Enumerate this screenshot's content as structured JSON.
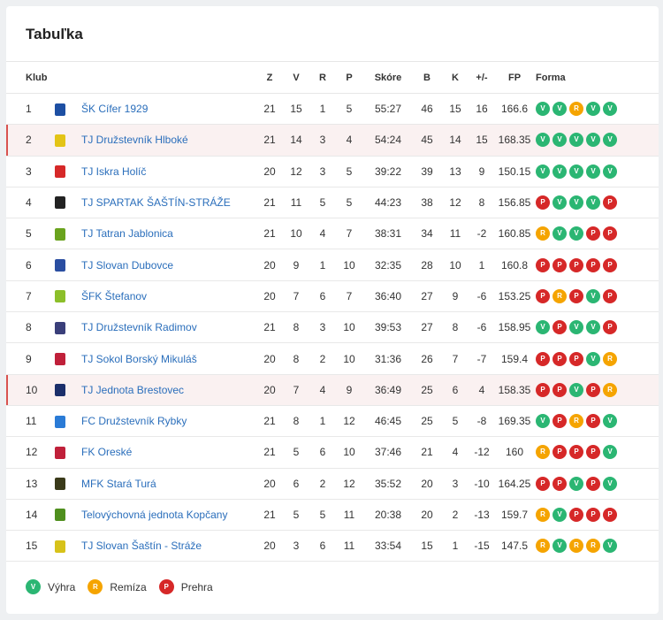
{
  "title": "Tabuľka",
  "headers": {
    "club": "Klub",
    "z": "Z",
    "v": "V",
    "r": "R",
    "p": "P",
    "score": "Skóre",
    "b": "B",
    "k": "K",
    "diff": "+/-",
    "fp": "FP",
    "form": "Forma"
  },
  "rows": [
    {
      "pos": "1",
      "club": "ŠK Cífer 1929",
      "z": "21",
      "v": "15",
      "r": "1",
      "p": "5",
      "score": "55:27",
      "b": "46",
      "k": "15",
      "diff": "16",
      "fp": "166.6",
      "form": [
        "V",
        "V",
        "R",
        "V",
        "V"
      ],
      "crest": "#1d4fa3",
      "hl": false
    },
    {
      "pos": "2",
      "club": "TJ Družstevník Hlboké",
      "z": "21",
      "v": "14",
      "r": "3",
      "p": "4",
      "score": "54:24",
      "b": "45",
      "k": "14",
      "diff": "15",
      "fp": "168.35",
      "form": [
        "V",
        "V",
        "V",
        "V",
        "V"
      ],
      "crest": "#e3c416",
      "hl": true
    },
    {
      "pos": "3",
      "club": "TJ Iskra Holíč",
      "z": "20",
      "v": "12",
      "r": "3",
      "p": "5",
      "score": "39:22",
      "b": "39",
      "k": "13",
      "diff": "9",
      "fp": "150.15",
      "form": [
        "V",
        "V",
        "V",
        "V",
        "V"
      ],
      "crest": "#d62828",
      "hl": false
    },
    {
      "pos": "4",
      "club": "TJ SPARTAK ŠAŠTÍN-STRÁŽE",
      "z": "21",
      "v": "11",
      "r": "5",
      "p": "5",
      "score": "44:23",
      "b": "38",
      "k": "12",
      "diff": "8",
      "fp": "156.85",
      "form": [
        "P",
        "V",
        "V",
        "V",
        "P"
      ],
      "crest": "#222222",
      "hl": false
    },
    {
      "pos": "5",
      "club": "TJ Tatran Jablonica",
      "z": "21",
      "v": "10",
      "r": "4",
      "p": "7",
      "score": "38:31",
      "b": "34",
      "k": "11",
      "diff": "-2",
      "fp": "160.85",
      "form": [
        "R",
        "V",
        "V",
        "P",
        "P"
      ],
      "crest": "#6aa31e",
      "hl": false
    },
    {
      "pos": "6",
      "club": "TJ Slovan Dubovce",
      "z": "20",
      "v": "9",
      "r": "1",
      "p": "10",
      "score": "32:35",
      "b": "28",
      "k": "10",
      "diff": "1",
      "fp": "160.8",
      "form": [
        "P",
        "P",
        "P",
        "P",
        "P"
      ],
      "crest": "#2a4ea1",
      "hl": false
    },
    {
      "pos": "7",
      "club": "ŠFK Štefanov",
      "z": "20",
      "v": "7",
      "r": "6",
      "p": "7",
      "score": "36:40",
      "b": "27",
      "k": "9",
      "diff": "-6",
      "fp": "153.25",
      "form": [
        "P",
        "R",
        "P",
        "V",
        "P"
      ],
      "crest": "#8cbf2a",
      "hl": false
    },
    {
      "pos": "8",
      "club": "TJ Družstevník Radimov",
      "z": "21",
      "v": "8",
      "r": "3",
      "p": "10",
      "score": "39:53",
      "b": "27",
      "k": "8",
      "diff": "-6",
      "fp": "158.95",
      "form": [
        "V",
        "P",
        "V",
        "V",
        "P"
      ],
      "crest": "#3a3f7a",
      "hl": false
    },
    {
      "pos": "9",
      "club": "TJ Sokol Borský Mikuláš",
      "z": "20",
      "v": "8",
      "r": "2",
      "p": "10",
      "score": "31:36",
      "b": "26",
      "k": "7",
      "diff": "-7",
      "fp": "159.4",
      "form": [
        "P",
        "P",
        "P",
        "V",
        "R"
      ],
      "crest": "#c0203a",
      "hl": false
    },
    {
      "pos": "10",
      "club": "TJ Jednota Brestovec",
      "z": "20",
      "v": "7",
      "r": "4",
      "p": "9",
      "score": "36:49",
      "b": "25",
      "k": "6",
      "diff": "4",
      "fp": "158.35",
      "form": [
        "P",
        "P",
        "V",
        "P",
        "R"
      ],
      "crest": "#1b2f6b",
      "hl": true
    },
    {
      "pos": "11",
      "club": "FC Družstevník Rybky",
      "z": "21",
      "v": "8",
      "r": "1",
      "p": "12",
      "score": "46:45",
      "b": "25",
      "k": "5",
      "diff": "-8",
      "fp": "169.35",
      "form": [
        "V",
        "P",
        "R",
        "P",
        "V"
      ],
      "crest": "#2a7bd6",
      "hl": false
    },
    {
      "pos": "12",
      "club": "FK Oreské",
      "z": "21",
      "v": "5",
      "r": "6",
      "p": "10",
      "score": "37:46",
      "b": "21",
      "k": "4",
      "diff": "-12",
      "fp": "160",
      "form": [
        "R",
        "P",
        "P",
        "P",
        "V"
      ],
      "crest": "#c0203a",
      "hl": false
    },
    {
      "pos": "13",
      "club": "MFK Stará Turá",
      "z": "20",
      "v": "6",
      "r": "2",
      "p": "12",
      "score": "35:52",
      "b": "20",
      "k": "3",
      "diff": "-10",
      "fp": "164.25",
      "form": [
        "P",
        "P",
        "V",
        "P",
        "V"
      ],
      "crest": "#3a3a1a",
      "hl": false
    },
    {
      "pos": "14",
      "club": "Telovýchovná jednota Kopčany",
      "z": "21",
      "v": "5",
      "r": "5",
      "p": "11",
      "score": "20:38",
      "b": "20",
      "k": "2",
      "diff": "-13",
      "fp": "159.7",
      "form": [
        "R",
        "V",
        "P",
        "P",
        "P"
      ],
      "crest": "#4f8f1e",
      "hl": false
    },
    {
      "pos": "15",
      "club": "TJ Slovan Šaštín - Stráže",
      "z": "20",
      "v": "3",
      "r": "6",
      "p": "11",
      "score": "33:54",
      "b": "15",
      "k": "1",
      "diff": "-15",
      "fp": "147.5",
      "form": [
        "R",
        "V",
        "R",
        "R",
        "V"
      ],
      "crest": "#d7c21a",
      "hl": false
    }
  ],
  "legend": [
    {
      "code": "V",
      "label": "Výhra"
    },
    {
      "code": "R",
      "label": "Remíza"
    },
    {
      "code": "P",
      "label": "Prehra"
    }
  ],
  "colors": {
    "win": "#2bb673",
    "draw": "#f5a400",
    "loss": "#d62828",
    "link": "#2a6ebb",
    "highlight": "#d9534f"
  }
}
